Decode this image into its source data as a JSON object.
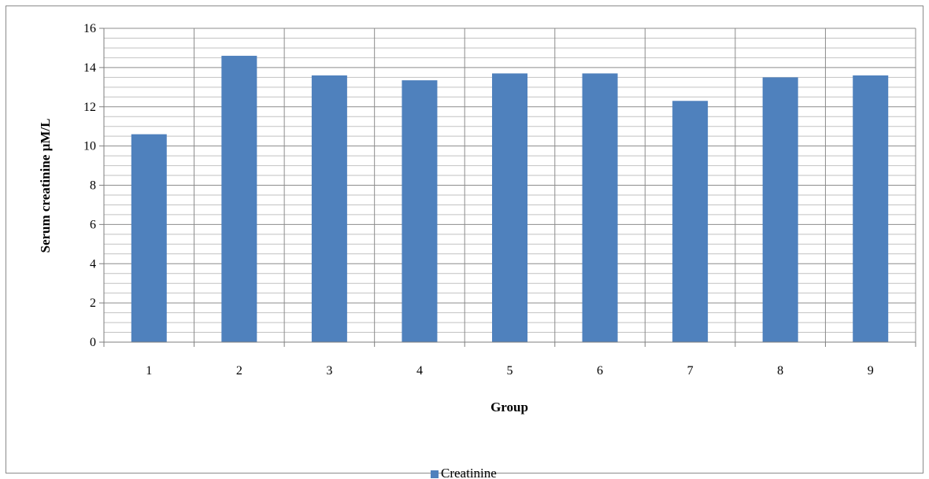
{
  "chart_data": {
    "type": "bar",
    "categories": [
      "1",
      "2",
      "3",
      "4",
      "5",
      "6",
      "7",
      "8",
      "9"
    ],
    "series": [
      {
        "name": "Creatinine",
        "values": [
          10.6,
          14.6,
          13.6,
          13.35,
          13.7,
          13.7,
          12.3,
          13.5,
          13.6
        ],
        "color": "#4f81bd"
      }
    ],
    "xlabel": "Group",
    "ylabel": "Serum creatinine µM/L",
    "ylim": [
      0,
      16
    ],
    "yticks": [
      0,
      2,
      4,
      6,
      8,
      10,
      12,
      14,
      16
    ],
    "grid": true,
    "legend": "bottom"
  }
}
